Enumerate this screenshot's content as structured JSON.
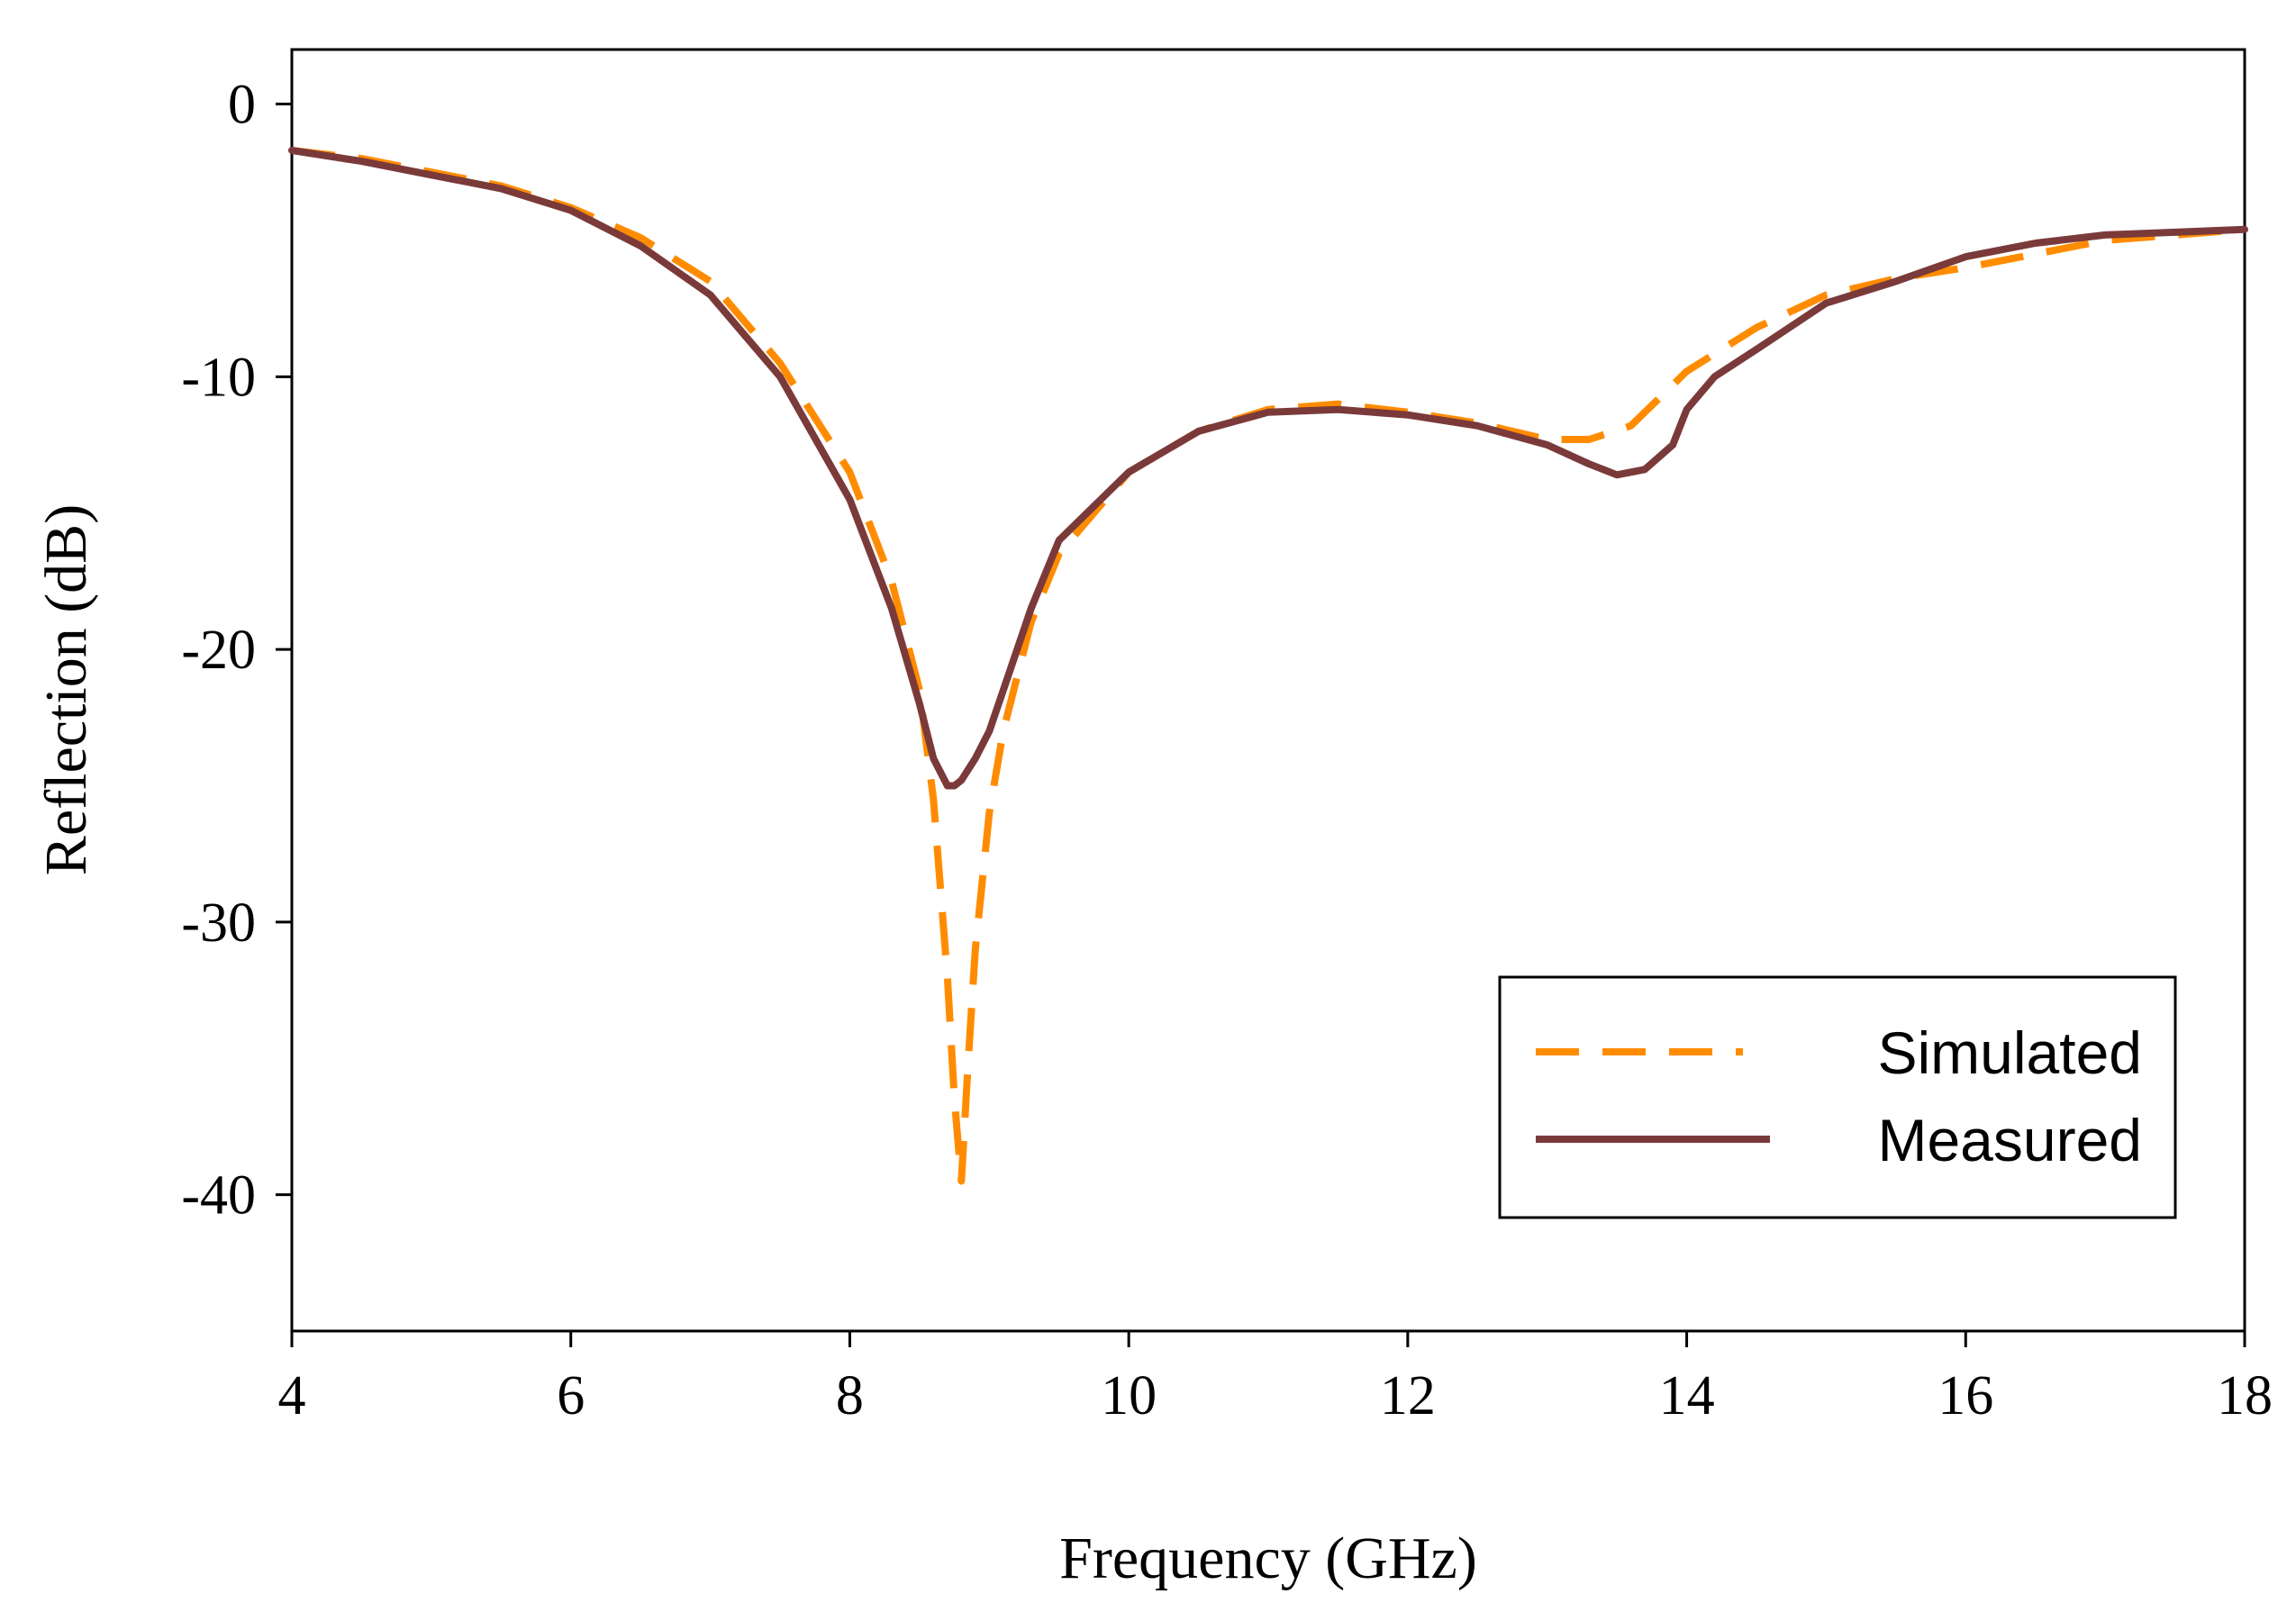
{
  "chart_data": {
    "type": "line",
    "title": "",
    "xlabel": "Frequency (GHz)",
    "ylabel": "Reflection (dB)",
    "xlim": [
      4,
      18
    ],
    "ylim": [
      -45,
      2
    ],
    "xticks": [
      4,
      6,
      8,
      10,
      12,
      14,
      16,
      18
    ],
    "yticks": [
      0,
      -10,
      -20,
      -30,
      -40
    ],
    "xtick_labels": [
      "4",
      "6",
      "8",
      "10",
      "12",
      "14",
      "16",
      "18"
    ],
    "ytick_labels": [
      "0",
      "-10",
      "-20",
      "-30",
      "-40"
    ],
    "grid": false,
    "legend_position": "bottom-right",
    "series": [
      {
        "name": "Simulated",
        "color": "#FF8C00",
        "style": "dashed",
        "x": [
          4.0,
          4.5,
          5.0,
          5.5,
          6.0,
          6.5,
          7.0,
          7.5,
          8.0,
          8.3,
          8.5,
          8.6,
          8.7,
          8.75,
          8.8,
          8.85,
          8.9,
          9.0,
          9.1,
          9.3,
          9.5,
          10.0,
          10.5,
          11.0,
          11.5,
          12.0,
          12.5,
          13.0,
          13.3,
          13.6,
          14.0,
          14.5,
          15.0,
          15.5,
          16.0,
          16.5,
          17.0,
          17.5,
          18.0
        ],
        "values": [
          -1.7,
          -2.0,
          -2.5,
          -3.0,
          -3.8,
          -4.9,
          -6.5,
          -9.5,
          -13.5,
          -17.5,
          -21.5,
          -25.5,
          -32.0,
          -36.5,
          -39.5,
          -35.0,
          -31.0,
          -26.0,
          -23.0,
          -19.0,
          -16.5,
          -13.5,
          -12.0,
          -11.2,
          -11.0,
          -11.3,
          -11.7,
          -12.3,
          -12.3,
          -11.8,
          -9.8,
          -8.2,
          -7.0,
          -6.4,
          -6.0,
          -5.5,
          -5.0,
          -4.8,
          -4.6
        ]
      },
      {
        "name": "Measured",
        "color": "#7B3A3A",
        "style": "solid",
        "x": [
          4.0,
          4.5,
          5.0,
          5.5,
          6.0,
          6.5,
          7.0,
          7.5,
          8.0,
          8.3,
          8.5,
          8.6,
          8.7,
          8.75,
          8.8,
          8.9,
          9.0,
          9.1,
          9.3,
          9.5,
          10.0,
          10.5,
          11.0,
          11.5,
          12.0,
          12.5,
          13.0,
          13.3,
          13.5,
          13.7,
          13.9,
          14.0,
          14.2,
          14.5,
          15.0,
          15.5,
          16.0,
          16.5,
          17.0,
          17.5,
          18.0
        ],
        "values": [
          -1.7,
          -2.1,
          -2.6,
          -3.1,
          -3.9,
          -5.2,
          -7.0,
          -10.0,
          -14.5,
          -18.5,
          -22.0,
          -24.0,
          -25.0,
          -25.0,
          -24.8,
          -24.0,
          -23.0,
          -21.5,
          -18.5,
          -16.0,
          -13.5,
          -12.0,
          -11.3,
          -11.2,
          -11.4,
          -11.8,
          -12.5,
          -13.2,
          -13.6,
          -13.4,
          -12.5,
          -11.2,
          -10.0,
          -9.0,
          -7.3,
          -6.5,
          -5.6,
          -5.1,
          -4.8,
          -4.7,
          -4.6
        ]
      }
    ]
  }
}
